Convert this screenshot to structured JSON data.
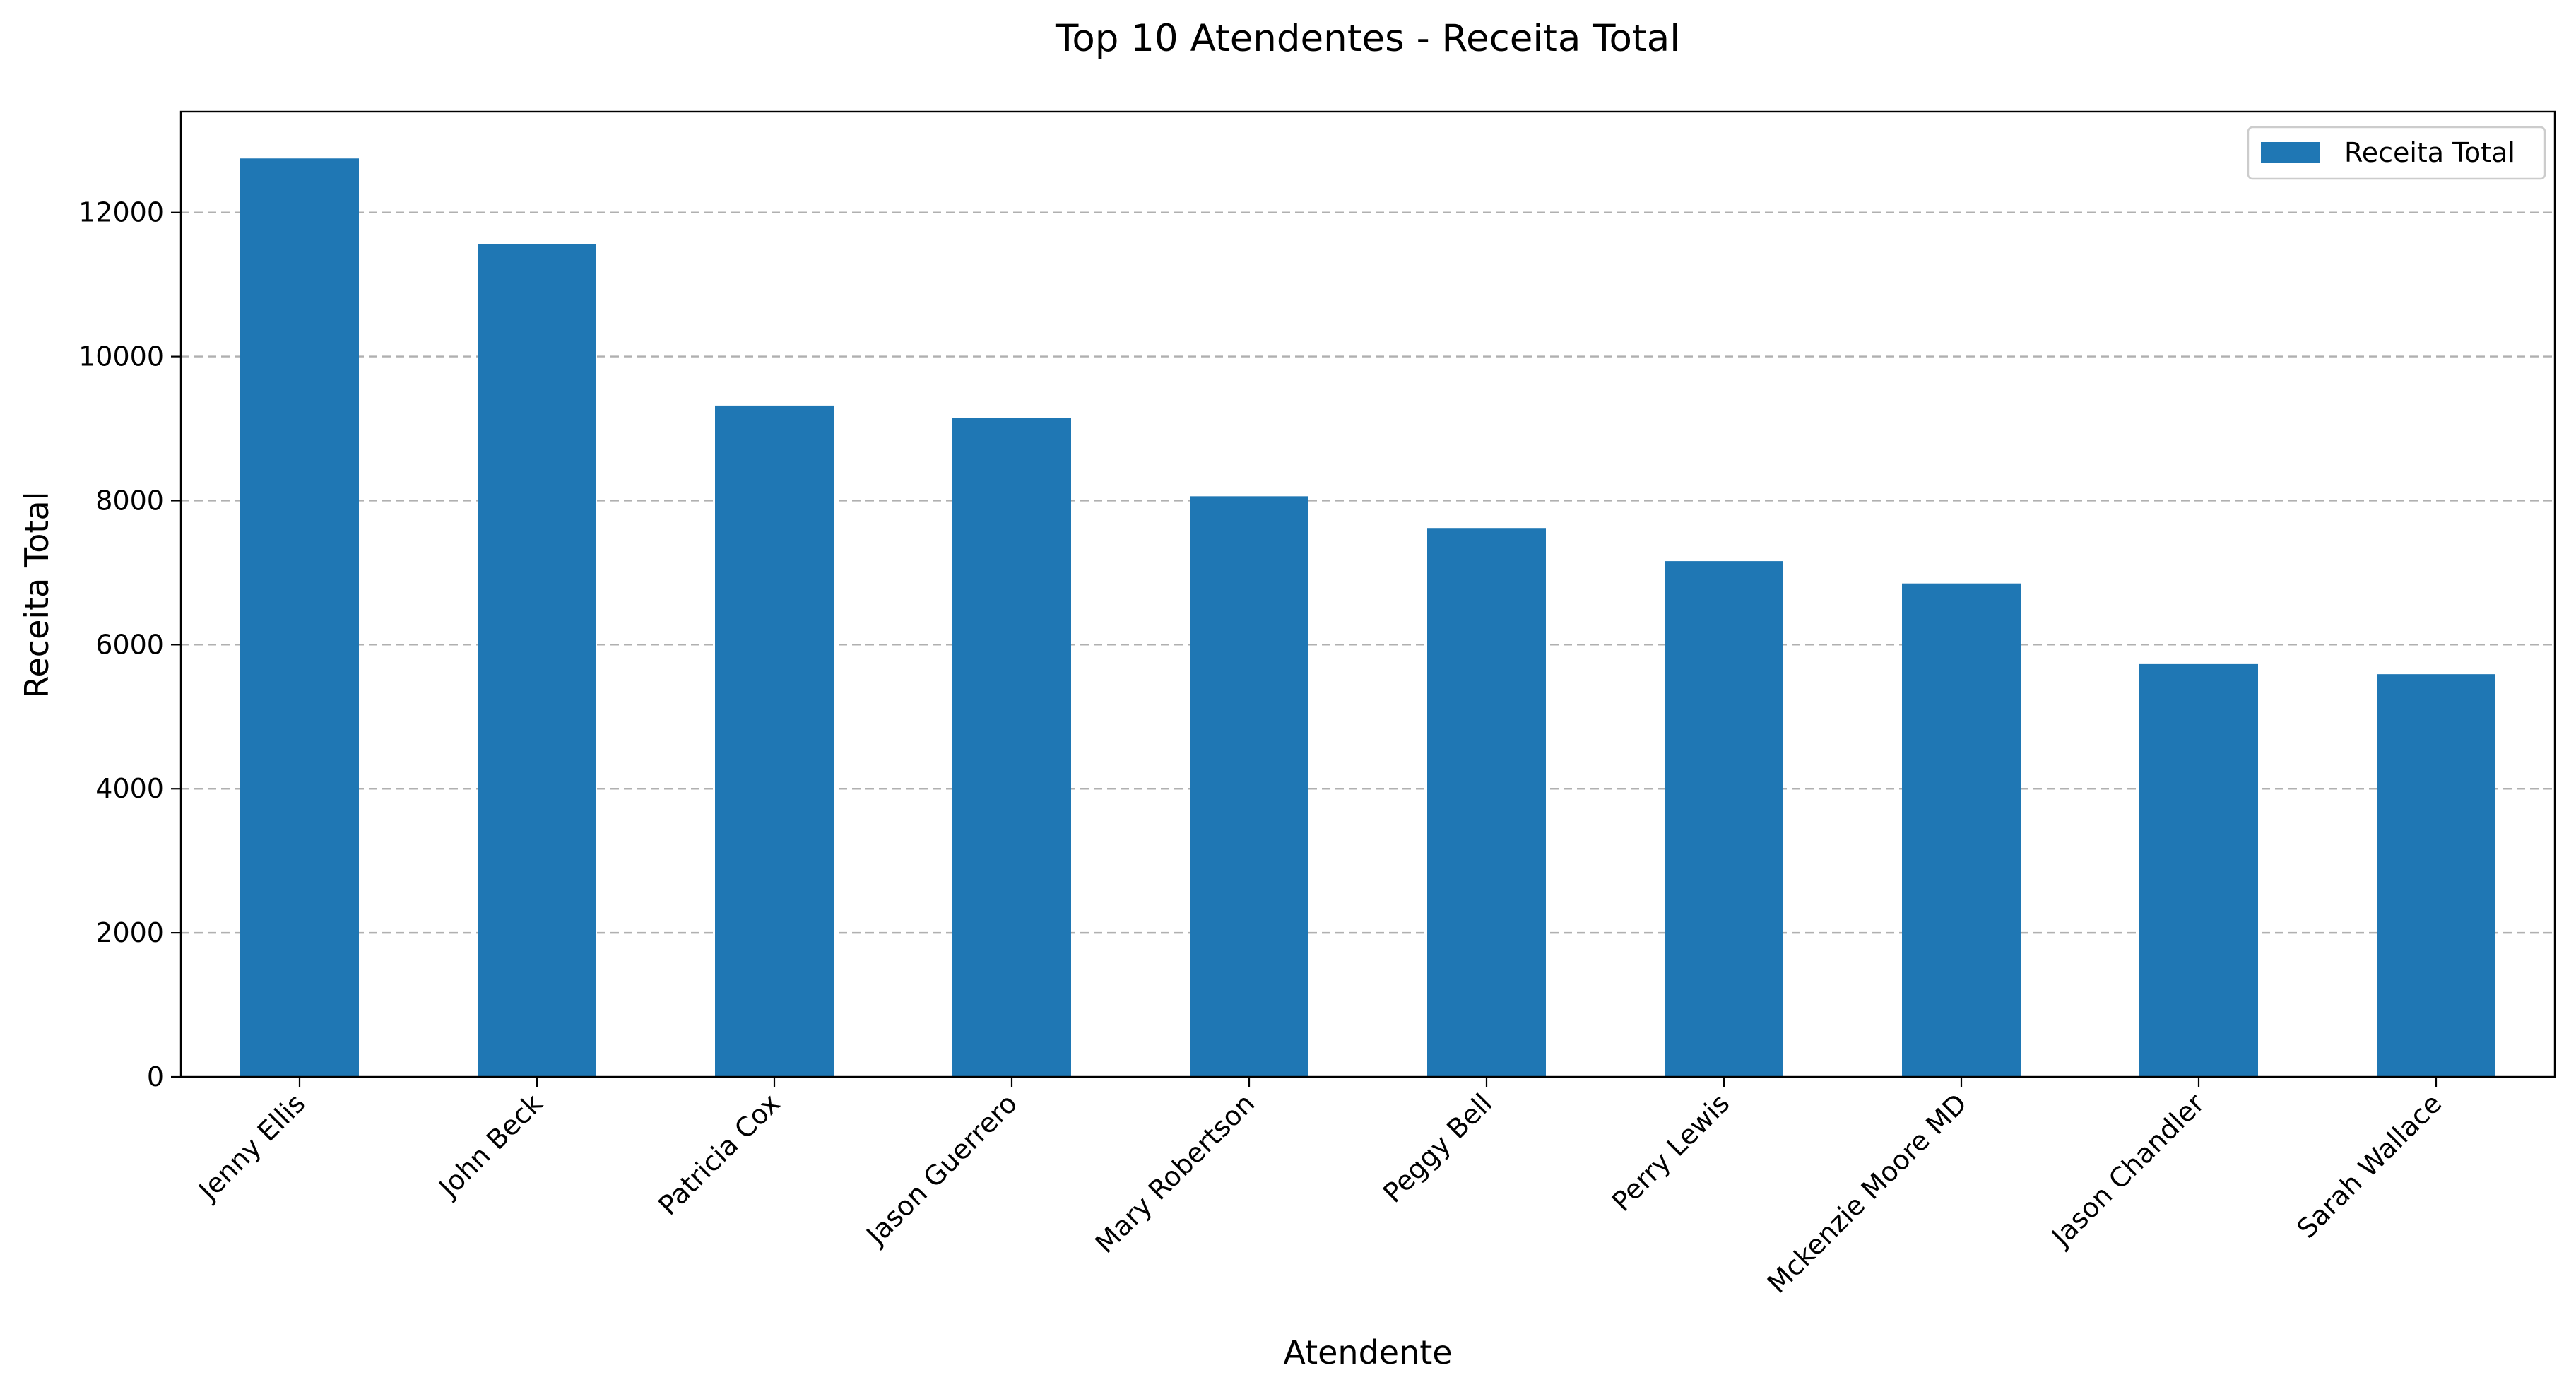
{
  "chart_data": {
    "type": "bar",
    "title": "Top 10 Atendentes - Receita Total",
    "xlabel": "Atendente",
    "ylabel": "Receita Total",
    "categories": [
      "Jenny Ellis",
      "John Beck",
      "Patricia Cox",
      "Jason Guerrero",
      "Mary Robertson",
      "Peggy Bell",
      "Perry Lewis",
      "Mckenzie Moore MD",
      "Jason Chandler",
      "Sarah Wallace"
    ],
    "series": [
      {
        "name": "Receita Total",
        "color": "#1f77b4",
        "values": [
          12750,
          11560,
          9320,
          9150,
          8060,
          7620,
          7160,
          6850,
          5730,
          5590
        ]
      }
    ],
    "ylim": [
      0,
      13400
    ],
    "yticks": [
      0,
      2000,
      4000,
      6000,
      8000,
      10000,
      12000
    ],
    "grid": "y-dashed",
    "legend_position": "top-right"
  }
}
